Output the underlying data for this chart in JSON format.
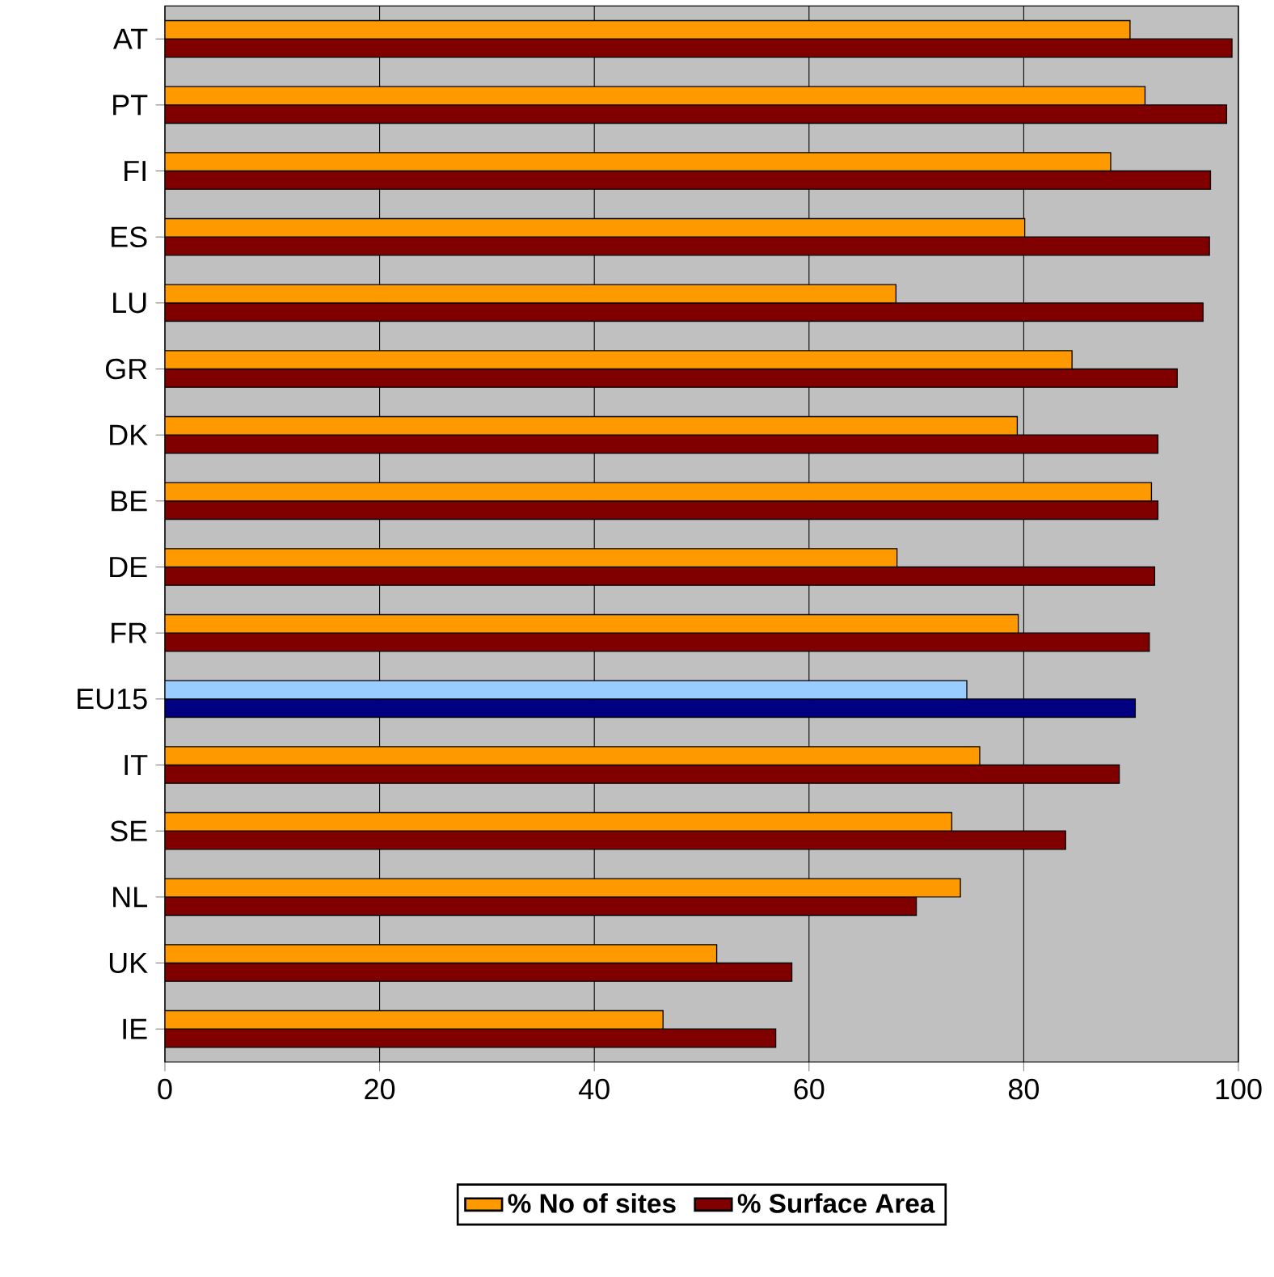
{
  "chart_data": {
    "type": "bar",
    "orientation": "horizontal",
    "categories": [
      "AT",
      "PT",
      "FI",
      "ES",
      "LU",
      "GR",
      "DK",
      "BE",
      "DE",
      "FR",
      "EU15",
      "IT",
      "SE",
      "NL",
      "UK",
      "IE"
    ],
    "series": [
      {
        "name": "% No of sites",
        "color": "#ff9900",
        "colors": [
          "#ff9900",
          "#ff9900",
          "#ff9900",
          "#ff9900",
          "#ff9900",
          "#ff9900",
          "#ff9900",
          "#ff9900",
          "#ff9900",
          "#ff9900",
          "#99ccff",
          "#ff9900",
          "#ff9900",
          "#ff9900",
          "#ff9900",
          "#ff9900"
        ],
        "values": [
          89.9,
          91.3,
          88.1,
          80.1,
          68.1,
          84.5,
          79.4,
          91.9,
          68.2,
          79.5,
          74.7,
          75.9,
          73.3,
          74.1,
          51.4,
          46.4
        ]
      },
      {
        "name": "% Surface Area",
        "color": "#800000",
        "colors": [
          "#800000",
          "#800000",
          "#800000",
          "#800000",
          "#800000",
          "#800000",
          "#800000",
          "#800000",
          "#800000",
          "#800000",
          "#000080",
          "#800000",
          "#800000",
          "#800000",
          "#800000",
          "#800000"
        ],
        "values": [
          99.4,
          98.9,
          97.4,
          97.3,
          96.7,
          94.3,
          92.5,
          92.5,
          92.2,
          91.7,
          90.4,
          88.9,
          83.9,
          70.0,
          58.4,
          56.9
        ]
      }
    ],
    "xlim": [
      0,
      100
    ],
    "xticks": [
      0,
      20,
      40,
      60,
      80,
      100
    ],
    "grid": "x",
    "legend": "bottom"
  }
}
